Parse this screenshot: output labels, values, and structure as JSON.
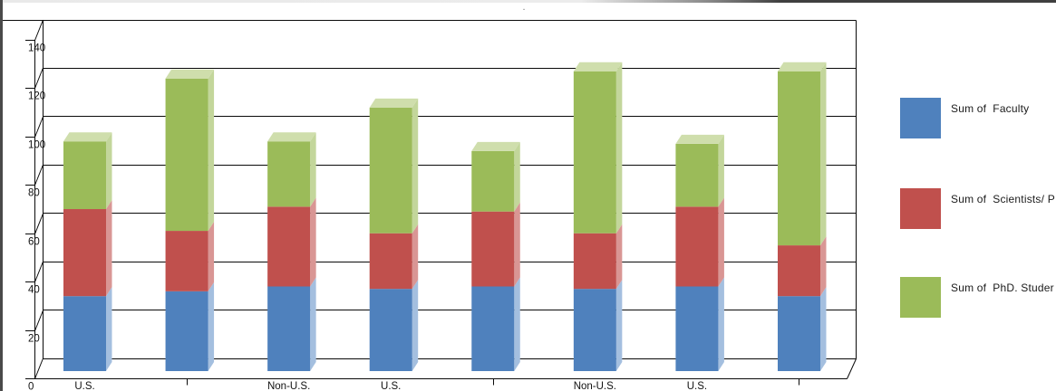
{
  "chart": {
    "title": "."
  },
  "chart_data": {
    "type": "bar",
    "stacked": true,
    "style": "3d",
    "title": ".",
    "categories": [
      "U.S.",
      "",
      "Non-U.S.",
      "U.S.",
      "",
      "Non-U.S.",
      "U.S.",
      ""
    ],
    "series": [
      {
        "name": "Sum of  Faculty",
        "color": "#4F81BD",
        "side_color": "#A4BFDF",
        "top_color": "#B9CDE6",
        "values": [
          31,
          33,
          35,
          34,
          35,
          34,
          35,
          31
        ]
      },
      {
        "name": "Sum of  Scientists/ P",
        "color": "#C0504D",
        "side_color": "#D99694",
        "top_color": "#E0A7A5",
        "values": [
          36,
          25,
          33,
          23,
          31,
          23,
          33,
          21
        ]
      },
      {
        "name": "Sum of  PhD. Studer",
        "color": "#9BBB59",
        "side_color": "#C3D69B",
        "top_color": "#CFDEAC",
        "values": [
          28,
          63,
          27,
          52,
          25,
          67,
          26,
          72
        ]
      }
    ],
    "ylim": [
      0,
      140
    ],
    "ytick_step": 20,
    "yticks": [
      "0",
      "20",
      "40",
      "60",
      "80",
      "100",
      "120",
      "140"
    ],
    "grid": true,
    "legend_position": "right",
    "xlabel": "",
    "ylabel": ""
  }
}
